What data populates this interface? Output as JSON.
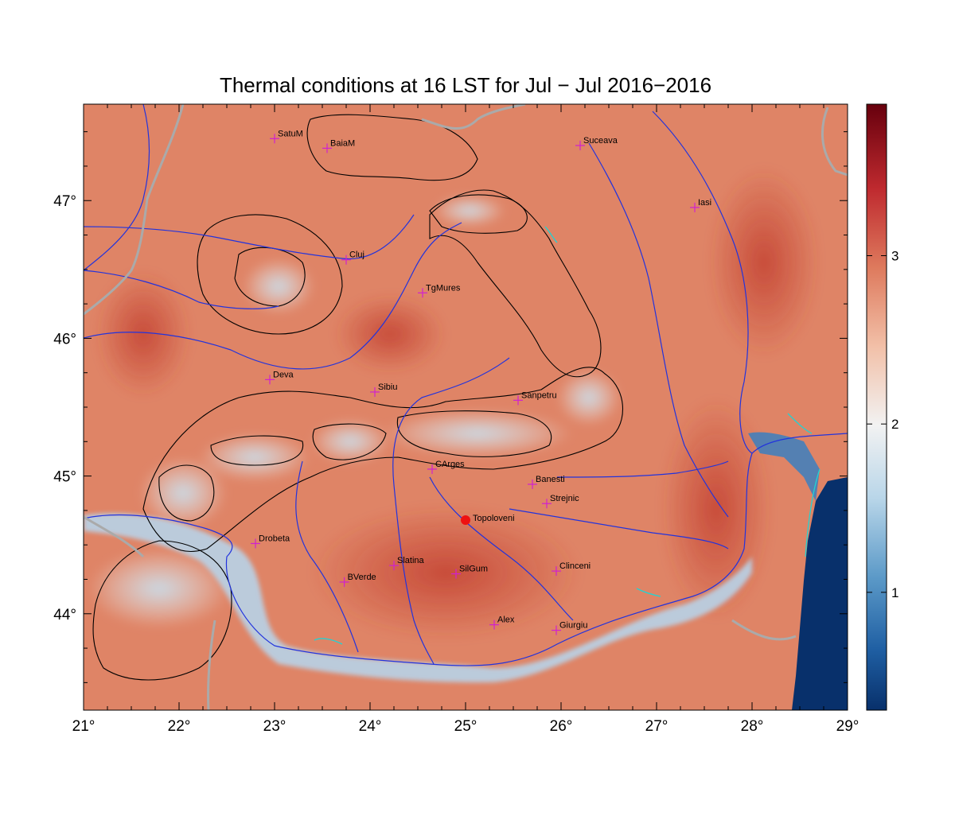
{
  "title": "Thermal conditions at 16 LST for Jul − Jul  2016−2016",
  "map": {
    "lon_range": [
      21,
      29
    ],
    "lat_range": [
      43.3,
      47.7
    ],
    "lon_ticks": [
      21,
      22,
      23,
      24,
      25,
      26,
      27,
      28,
      29
    ],
    "lon_labels": [
      "21°",
      "22°",
      "23°",
      "24°",
      "25°",
      "26°",
      "27°",
      "28°",
      "29°"
    ],
    "lat_ticks": [
      44,
      45,
      46,
      47
    ],
    "lat_labels": [
      "44°",
      "45°",
      "46°",
      "47°"
    ],
    "colors": {
      "warm_dark": "#c0392b",
      "warm": "#de7a5d",
      "warm_light": "#eeb39a",
      "neutral": "#f3eeea",
      "cool_light": "#c8dcea",
      "cool": "#5c9ac8",
      "cool_dark": "#0b3a6e",
      "rivers": "#2233dd",
      "borders": "#aaaaaa",
      "lakes": "#22d3d3",
      "contours": "#000000",
      "city_marker": "#d020d0",
      "highlight_marker": "#ee1111"
    }
  },
  "cities": [
    {
      "name": "SatuM",
      "lon": 23.0,
      "lat": 47.45
    },
    {
      "name": "BaiaM",
      "lon": 23.55,
      "lat": 47.38
    },
    {
      "name": "Suceava",
      "lon": 26.2,
      "lat": 47.4
    },
    {
      "name": "Iasi",
      "lon": 27.4,
      "lat": 46.95
    },
    {
      "name": "Cluj",
      "lon": 23.75,
      "lat": 46.57
    },
    {
      "name": "TgMures",
      "lon": 24.55,
      "lat": 46.33
    },
    {
      "name": "Deva",
      "lon": 22.95,
      "lat": 45.7
    },
    {
      "name": "Sibiu",
      "lon": 24.05,
      "lat": 45.61
    },
    {
      "name": "Sanpetru",
      "lon": 25.55,
      "lat": 45.55
    },
    {
      "name": "CArges",
      "lon": 24.65,
      "lat": 45.05
    },
    {
      "name": "Banesti",
      "lon": 25.7,
      "lat": 44.94
    },
    {
      "name": "Strejnic",
      "lon": 25.85,
      "lat": 44.8
    },
    {
      "name": "Drobeta",
      "lon": 22.8,
      "lat": 44.51
    },
    {
      "name": "BVerde",
      "lon": 23.73,
      "lat": 44.23
    },
    {
      "name": "Slatina",
      "lon": 24.25,
      "lat": 44.35
    },
    {
      "name": "SilGum",
      "lon": 24.9,
      "lat": 44.29
    },
    {
      "name": "Clinceni",
      "lon": 25.95,
      "lat": 44.31
    },
    {
      "name": "Alex",
      "lon": 25.3,
      "lat": 43.92
    },
    {
      "name": "Giurgiu",
      "lon": 25.95,
      "lat": 43.88
    }
  ],
  "highlight": {
    "name": "Topoloveni",
    "lon": 25.0,
    "lat": 44.68
  },
  "colorbar": {
    "range": [
      0.3,
      3.9
    ],
    "ticks": [
      1,
      2,
      3
    ],
    "tick_labels": [
      "1",
      "2",
      "3"
    ]
  }
}
